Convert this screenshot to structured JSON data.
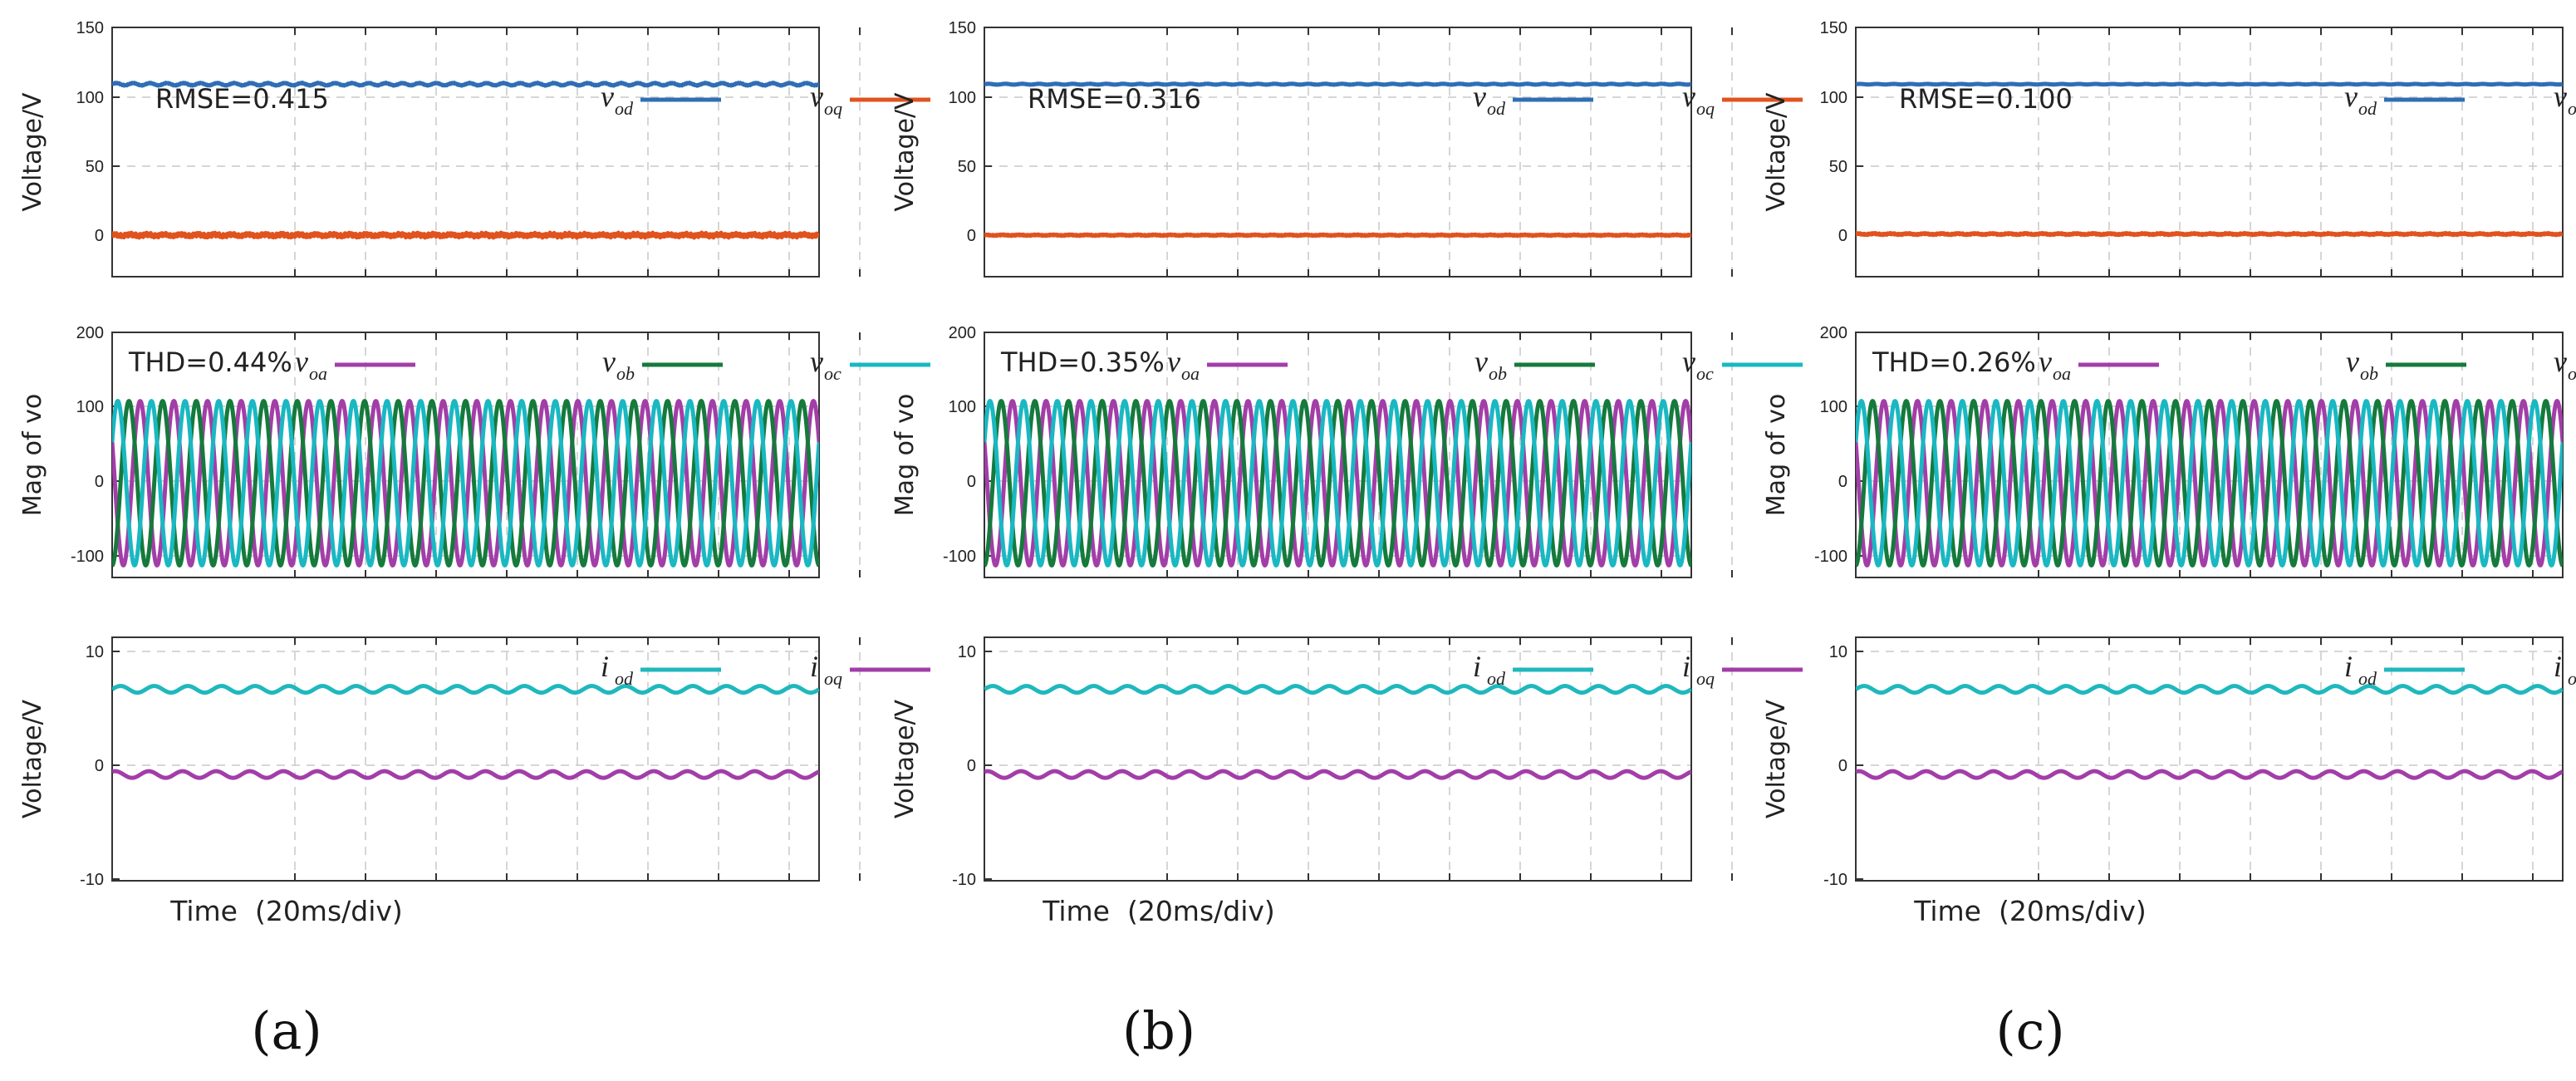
{
  "colors": {
    "vod": "#2f6eb5",
    "voq": "#e0531f",
    "voa": "#a23ea8",
    "vob": "#157a3c",
    "voc": "#19b8c2",
    "iod": "#1fb8bd",
    "ioq": "#a23ea8"
  },
  "chart_data": [
    {
      "panel": "(a)",
      "type": "line",
      "xlabel": "Time  (20ms/div)",
      "subplots": [
        {
          "ylabel": "Voltage/V",
          "ylim": [
            -30,
            150
          ],
          "yticks": [
            "150",
            "100",
            "50",
            "0"
          ],
          "annotation": "RMSE=0.415",
          "series": [
            {
              "sym": "v",
              "sub": "od",
              "color_key": "vod",
              "level": 109,
              "ripple": 0.8,
              "noise": 0.3,
              "cycles": 42
            },
            {
              "sym": "v",
              "sub": "oq",
              "color_key": "voq",
              "level": 0,
              "ripple": 0.5,
              "noise": 1.4,
              "cycles": 42
            }
          ]
        },
        {
          "ylabel": "Mag of vo",
          "ylim": [
            -125,
            200
          ],
          "yticks": [
            "200",
            "100",
            "0",
            "-100"
          ],
          "annotation": "THD=0.44%",
          "sine": {
            "amplitude": 109,
            "cycles": 21
          },
          "series": [
            {
              "sym": "v",
              "sub": "oa",
              "color_key": "voa",
              "phase_deg": 150
            },
            {
              "sym": "v",
              "sub": "ob",
              "color_key": "vob",
              "phase_deg": 270
            },
            {
              "sym": "v",
              "sub": "oc",
              "color_key": "voc",
              "phase_deg": 30
            }
          ]
        },
        {
          "ylabel": "Voltage/V",
          "ylim": [
            -10,
            12
          ],
          "yticks": [
            "10",
            "0",
            "-10"
          ],
          "series": [
            {
              "sym": "i",
              "sub": "od",
              "color_key": "iod",
              "level": 7.3,
              "ripple": 0.3,
              "noise": 0,
              "cycles": 21
            },
            {
              "sym": "i",
              "sub": "oq",
              "color_key": "ioq",
              "level": -0.4,
              "ripple": 0.3,
              "noise": 0,
              "cycles": 21
            }
          ]
        }
      ]
    },
    {
      "panel": "(b)",
      "type": "line",
      "xlabel": "Time  (20ms/div)",
      "subplots": [
        {
          "ylabel": "Voltage/V",
          "ylim": [
            -30,
            150
          ],
          "yticks": [
            "150",
            "100",
            "50",
            "0"
          ],
          "annotation": "RMSE=0.316",
          "series": [
            {
              "sym": "v",
              "sub": "od",
              "color_key": "vod",
              "level": 109,
              "ripple": 0.3,
              "noise": 0.15,
              "cycles": 42
            },
            {
              "sym": "v",
              "sub": "oq",
              "color_key": "voq",
              "level": 0,
              "ripple": 0.2,
              "noise": 0.4,
              "cycles": 42
            }
          ]
        },
        {
          "ylabel": "Mag of vo",
          "ylim": [
            -125,
            200
          ],
          "yticks": [
            "200",
            "100",
            "0",
            "-100"
          ],
          "annotation": "THD=0.35%",
          "sine": {
            "amplitude": 109,
            "cycles": 21
          },
          "series": [
            {
              "sym": "v",
              "sub": "oa",
              "color_key": "voa",
              "phase_deg": 150
            },
            {
              "sym": "v",
              "sub": "ob",
              "color_key": "vob",
              "phase_deg": 270
            },
            {
              "sym": "v",
              "sub": "oc",
              "color_key": "voc",
              "phase_deg": 30
            }
          ]
        },
        {
          "ylabel": "Voltage/V",
          "ylim": [
            -10,
            12
          ],
          "yticks": [
            "10",
            "0",
            "-10"
          ],
          "series": [
            {
              "sym": "i",
              "sub": "od",
              "color_key": "iod",
              "level": 7.3,
              "ripple": 0.3,
              "noise": 0,
              "cycles": 21
            },
            {
              "sym": "i",
              "sub": "oq",
              "color_key": "ioq",
              "level": -0.4,
              "ripple": 0.3,
              "noise": 0,
              "cycles": 21
            }
          ]
        }
      ]
    },
    {
      "panel": "(c)",
      "type": "line",
      "xlabel": "Time  (20ms/div)",
      "subplots": [
        {
          "ylabel": "Voltage/V",
          "ylim": [
            -30,
            150
          ],
          "yticks": [
            "150",
            "100",
            "50",
            "0"
          ],
          "annotation": "RMSE=0.100",
          "series": [
            {
              "sym": "v",
              "sub": "od",
              "color_key": "vod",
              "level": 109,
              "ripple": 0.2,
              "noise": 0.1,
              "cycles": 42
            },
            {
              "sym": "v",
              "sub": "oq",
              "color_key": "voq",
              "level": 0.8,
              "ripple": 0.3,
              "noise": 0.5,
              "cycles": 42
            }
          ]
        },
        {
          "ylabel": "Mag of vo",
          "ylim": [
            -125,
            200
          ],
          "yticks": [
            "200",
            "100",
            "0",
            "-100"
          ],
          "annotation": "THD=0.26%",
          "sine": {
            "amplitude": 109,
            "cycles": 21
          },
          "series": [
            {
              "sym": "v",
              "sub": "oa",
              "color_key": "voa",
              "phase_deg": 150
            },
            {
              "sym": "v",
              "sub": "ob",
              "color_key": "vob",
              "phase_deg": 270
            },
            {
              "sym": "v",
              "sub": "oc",
              "color_key": "voc",
              "phase_deg": 30
            }
          ]
        },
        {
          "ylabel": "Voltage/V",
          "ylim": [
            -10,
            12
          ],
          "yticks": [
            "10",
            "0",
            "-10"
          ],
          "series": [
            {
              "sym": "i",
              "sub": "od",
              "color_key": "iod",
              "level": 7.3,
              "ripple": 0.3,
              "noise": 0,
              "cycles": 21
            },
            {
              "sym": "i",
              "sub": "oq",
              "color_key": "ioq",
              "level": -0.4,
              "ripple": 0.3,
              "noise": 0,
              "cycles": 21
            }
          ]
        }
      ]
    }
  ]
}
